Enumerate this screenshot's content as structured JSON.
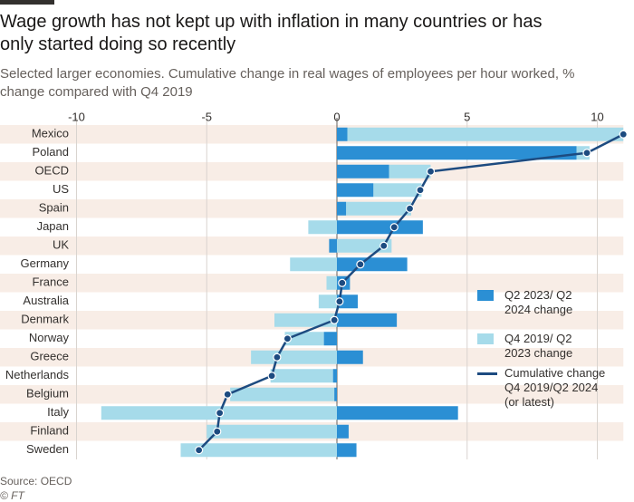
{
  "chart_data": {
    "type": "bar",
    "title": "Wage growth has not kept up with inflation in many countries or has only started doing so recently",
    "subtitle": "Selected larger economies. Cumulative change in real wages of employees per hour worked, % change compared with Q4 2019",
    "categories": [
      "Mexico",
      "Poland",
      "OECD",
      "US",
      "Spain",
      "Japan",
      "UK",
      "Germany",
      "France",
      "Australia",
      "Denmark",
      "Norway",
      "Greece",
      "Netherlands",
      "Belgium",
      "Italy",
      "Finland",
      "Sweden"
    ],
    "series": [
      {
        "name": "Q2 2023/ Q2 2024 change",
        "color": "#2b8fd4",
        "values": [
          0.4,
          9.2,
          2.0,
          1.4,
          0.35,
          3.3,
          -0.3,
          2.7,
          0.5,
          0.8,
          2.3,
          -0.5,
          1.0,
          -0.15,
          -0.1,
          4.65,
          0.45,
          0.75
        ]
      },
      {
        "name": "Q4 2019/ Q2 2023 change",
        "color": "#a6dbea",
        "values": [
          10.6,
          0.5,
          1.6,
          1.85,
          2.5,
          -1.1,
          2.1,
          -1.8,
          -0.4,
          -0.7,
          -2.4,
          -1.5,
          -3.3,
          -2.4,
          -4.0,
          -9.05,
          -5.0,
          -6.0
        ]
      },
      {
        "name": "Cumulative change Q4 2019/Q2 2024 (or latest)",
        "color": "#1d4b80",
        "type": "line",
        "values": [
          11.0,
          9.6,
          3.6,
          3.2,
          2.8,
          2.2,
          1.8,
          0.9,
          0.2,
          0.1,
          -0.1,
          -1.9,
          -2.3,
          -2.5,
          -4.2,
          -4.5,
          -4.6,
          -5.3
        ]
      }
    ],
    "xlim": [
      -10,
      11
    ],
    "xticks": [
      -10,
      -5,
      0,
      5,
      10
    ],
    "grid": true,
    "source": "Source: OECD",
    "credit": "© FT"
  }
}
